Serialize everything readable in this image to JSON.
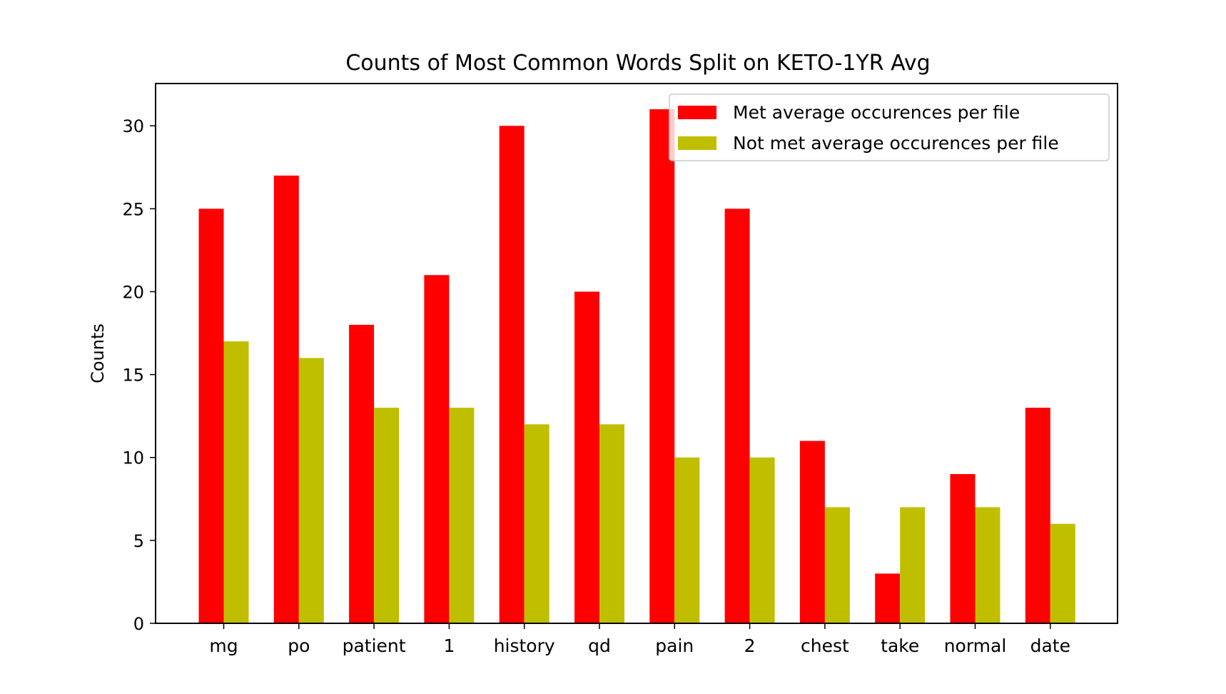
{
  "chart_data": {
    "type": "bar",
    "title": "Counts of Most Common Words Split on KETO-1YR Avg",
    "xlabel": "",
    "ylabel": "Counts",
    "categories": [
      "mg",
      "po",
      "patient",
      "1",
      "history",
      "qd",
      "pain",
      "2",
      "chest",
      "take",
      "normal",
      "date"
    ],
    "series": [
      {
        "name": "Met average occurences per file",
        "color": "#ff0000",
        "values": [
          25,
          27,
          18,
          21,
          30,
          20,
          31,
          25,
          11,
          3,
          9,
          13
        ]
      },
      {
        "name": "Not met average occurences per file",
        "color": "#bfbf00",
        "values": [
          17,
          16,
          13,
          13,
          12,
          12,
          10,
          10,
          7,
          7,
          7,
          6
        ]
      }
    ],
    "ylim": [
      0,
      32.55
    ],
    "yticks": [
      0,
      5,
      10,
      15,
      20,
      25,
      30
    ],
    "grid": false,
    "legend_position": "top-right"
  }
}
